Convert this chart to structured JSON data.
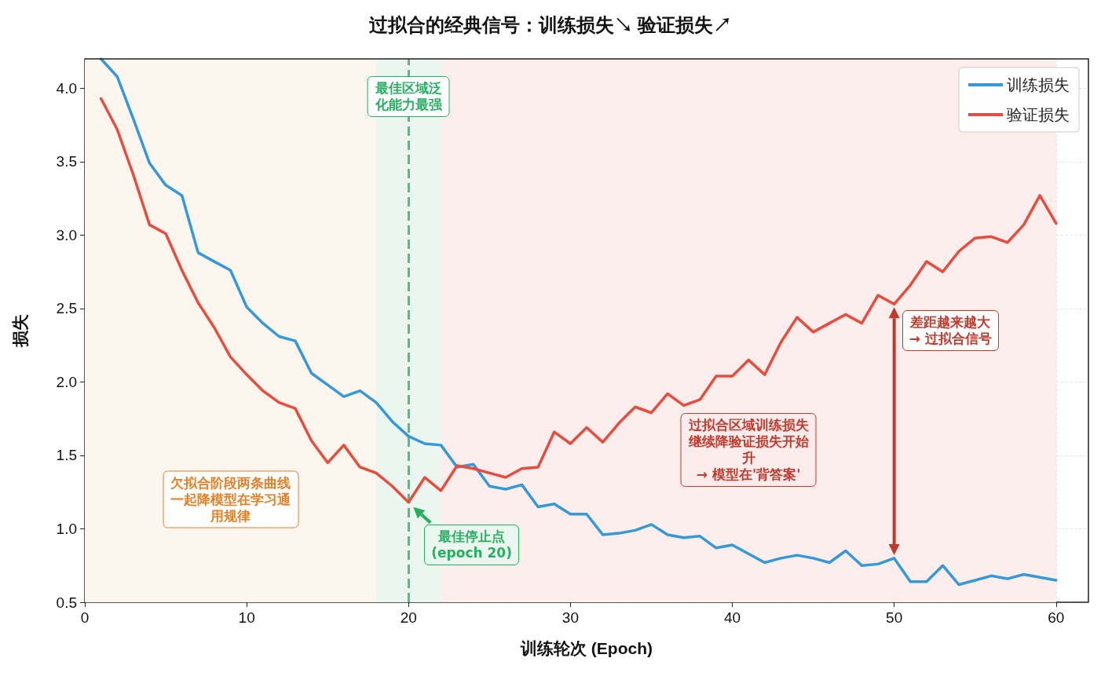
{
  "chart_data": {
    "type": "line",
    "title": "过拟合的经典信号：训练损失↘ 验证损失↗",
    "xlabel": "训练轮次 (Epoch)",
    "ylabel": "损失",
    "x": [
      1,
      2,
      3,
      4,
      5,
      6,
      7,
      8,
      9,
      10,
      11,
      12,
      13,
      14,
      15,
      16,
      17,
      18,
      19,
      20,
      21,
      22,
      23,
      24,
      25,
      26,
      27,
      28,
      29,
      30,
      31,
      32,
      33,
      34,
      35,
      36,
      37,
      38,
      39,
      40,
      41,
      42,
      43,
      44,
      45,
      46,
      47,
      48,
      49,
      50,
      51,
      52,
      53,
      54,
      55,
      56,
      57,
      58,
      59,
      60
    ],
    "series": [
      {
        "name": "训练损失",
        "color": "#3498db",
        "values": [
          4.2,
          4.08,
          3.79,
          3.49,
          3.34,
          3.27,
          2.88,
          2.82,
          2.76,
          2.51,
          2.4,
          2.31,
          2.28,
          2.06,
          1.98,
          1.9,
          1.94,
          1.86,
          1.73,
          1.63,
          1.58,
          1.57,
          1.42,
          1.44,
          1.29,
          1.27,
          1.3,
          1.15,
          1.17,
          1.1,
          1.1,
          0.96,
          0.97,
          0.99,
          1.03,
          0.96,
          0.94,
          0.95,
          0.87,
          0.89,
          0.83,
          0.77,
          0.8,
          0.82,
          0.8,
          0.77,
          0.85,
          0.75,
          0.76,
          0.8,
          0.64,
          0.64,
          0.75,
          0.62,
          0.65,
          0.68,
          0.66,
          0.69,
          0.67,
          0.65
        ]
      },
      {
        "name": "验证损失",
        "color": "#e74c3c",
        "values": [
          3.93,
          3.72,
          3.41,
          3.07,
          3.01,
          2.76,
          2.54,
          2.37,
          2.17,
          2.05,
          1.94,
          1.86,
          1.82,
          1.6,
          1.45,
          1.57,
          1.42,
          1.38,
          1.29,
          1.18,
          1.35,
          1.26,
          1.43,
          1.41,
          1.38,
          1.35,
          1.41,
          1.42,
          1.66,
          1.58,
          1.69,
          1.59,
          1.72,
          1.83,
          1.79,
          1.92,
          1.84,
          1.88,
          2.04,
          2.04,
          2.15,
          2.05,
          2.27,
          2.44,
          2.34,
          2.4,
          2.46,
          2.4,
          2.59,
          2.53,
          2.66,
          2.82,
          2.75,
          2.89,
          2.98,
          2.99,
          2.95,
          3.07,
          3.27,
          3.08
        ]
      }
    ],
    "xlim": [
      0,
      62
    ],
    "xticks": [
      0,
      10,
      20,
      30,
      40,
      50,
      60
    ],
    "ylim": [
      0.5,
      4.2
    ],
    "yticks": [
      {
        "value": 0.5,
        "label": "0.5"
      },
      {
        "value": 1,
        "label": "1.0"
      },
      {
        "value": 1.5,
        "label": "1.5"
      },
      {
        "value": 2,
        "label": "2.0"
      },
      {
        "value": 2.5,
        "label": "2.5"
      },
      {
        "value": 3,
        "label": "3.0"
      },
      {
        "value": 3.5,
        "label": "3.5"
      },
      {
        "value": 4,
        "label": "4.0"
      }
    ],
    "bands": [
      {
        "axis": "x",
        "from": 0,
        "to": 18,
        "label": "欠拟合阶段两条曲线一起降模型在学习通用规律",
        "color": "#fdf6ee"
      },
      {
        "axis": "x",
        "from": 18,
        "to": 22,
        "label": "最佳区域泛化能力最强",
        "color": "#eaf6ef"
      },
      {
        "axis": "x",
        "from": 22,
        "to": 60,
        "label": "过拟合区域训练损失继续降验证损失开始升\n→ 模型在'背答案'",
        "color": "#fdeeee"
      }
    ],
    "ref_lines": [
      {
        "axis": "x",
        "value": 20,
        "color": "#52be80",
        "line_style": "dashed"
      }
    ],
    "annotations": [
      {
        "text": "最佳停止点\n(epoch 20)",
        "x": 20,
        "y": 1.18
      },
      {
        "text": "差距越来越大\n→ 过拟合信号",
        "x": 50,
        "y": 2.53
      }
    ],
    "grid": true,
    "legend": "top right",
    "marker": "none",
    "line_style": "solid"
  }
}
